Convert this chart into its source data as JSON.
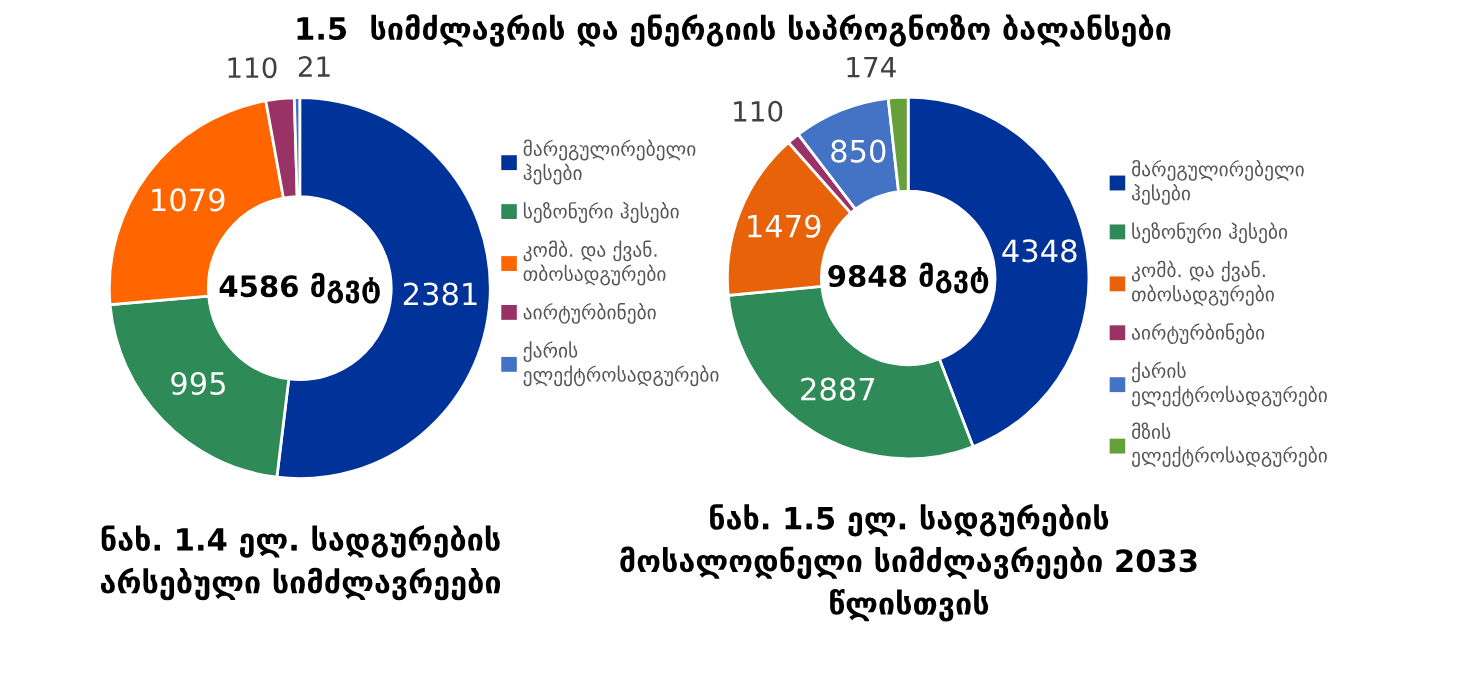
{
  "chart_data": [
    {
      "type": "donut",
      "title": "ნახ. 1.4 ელ. სადგურების არსებული სიმძლავრეები",
      "annotations": [
        "1.5  სიმძლავრის და ენერგიის საპროგნოზო ბალანსები",
        "4586 მგვტ"
      ],
      "categories": [
        "მარეგულირებელი ჰესები",
        "სეზონური ჰესები",
        "კომბ. და ქვან. თბოსადგურები",
        "აირტურბინები",
        "ქარის ელექტროსადგურები"
      ],
      "values": [
        2381,
        995,
        1079,
        110,
        21
      ],
      "colors": [
        "#003399",
        "#2e8b57",
        "#ff6600",
        "#993366",
        "#4472c4"
      ],
      "data_labels": true,
      "legend": "right"
    },
    {
      "type": "donut",
      "title": "ნახ. 1.5 ელ. სადგურების მოსალოდნელი სიმძლავრეები 2033 წლისთვის",
      "annotations": [
        "9848 მგვტ"
      ],
      "categories": [
        "მარეგულირებელი ჰესები",
        "სეზონური ჰესები",
        "კომბ. და ქვან. თბოსადგურები",
        "აირტურბინები",
        "ქარის ელექტროსადგურები",
        "მზის ელექტროსადგურები"
      ],
      "values": [
        4348,
        2887,
        1479,
        110,
        850,
        174
      ],
      "colors": [
        "#003399",
        "#2e8b57",
        "#e8620a",
        "#993366",
        "#4472c4",
        "#66a03a"
      ],
      "data_labels": true,
      "legend": "right"
    }
  ]
}
